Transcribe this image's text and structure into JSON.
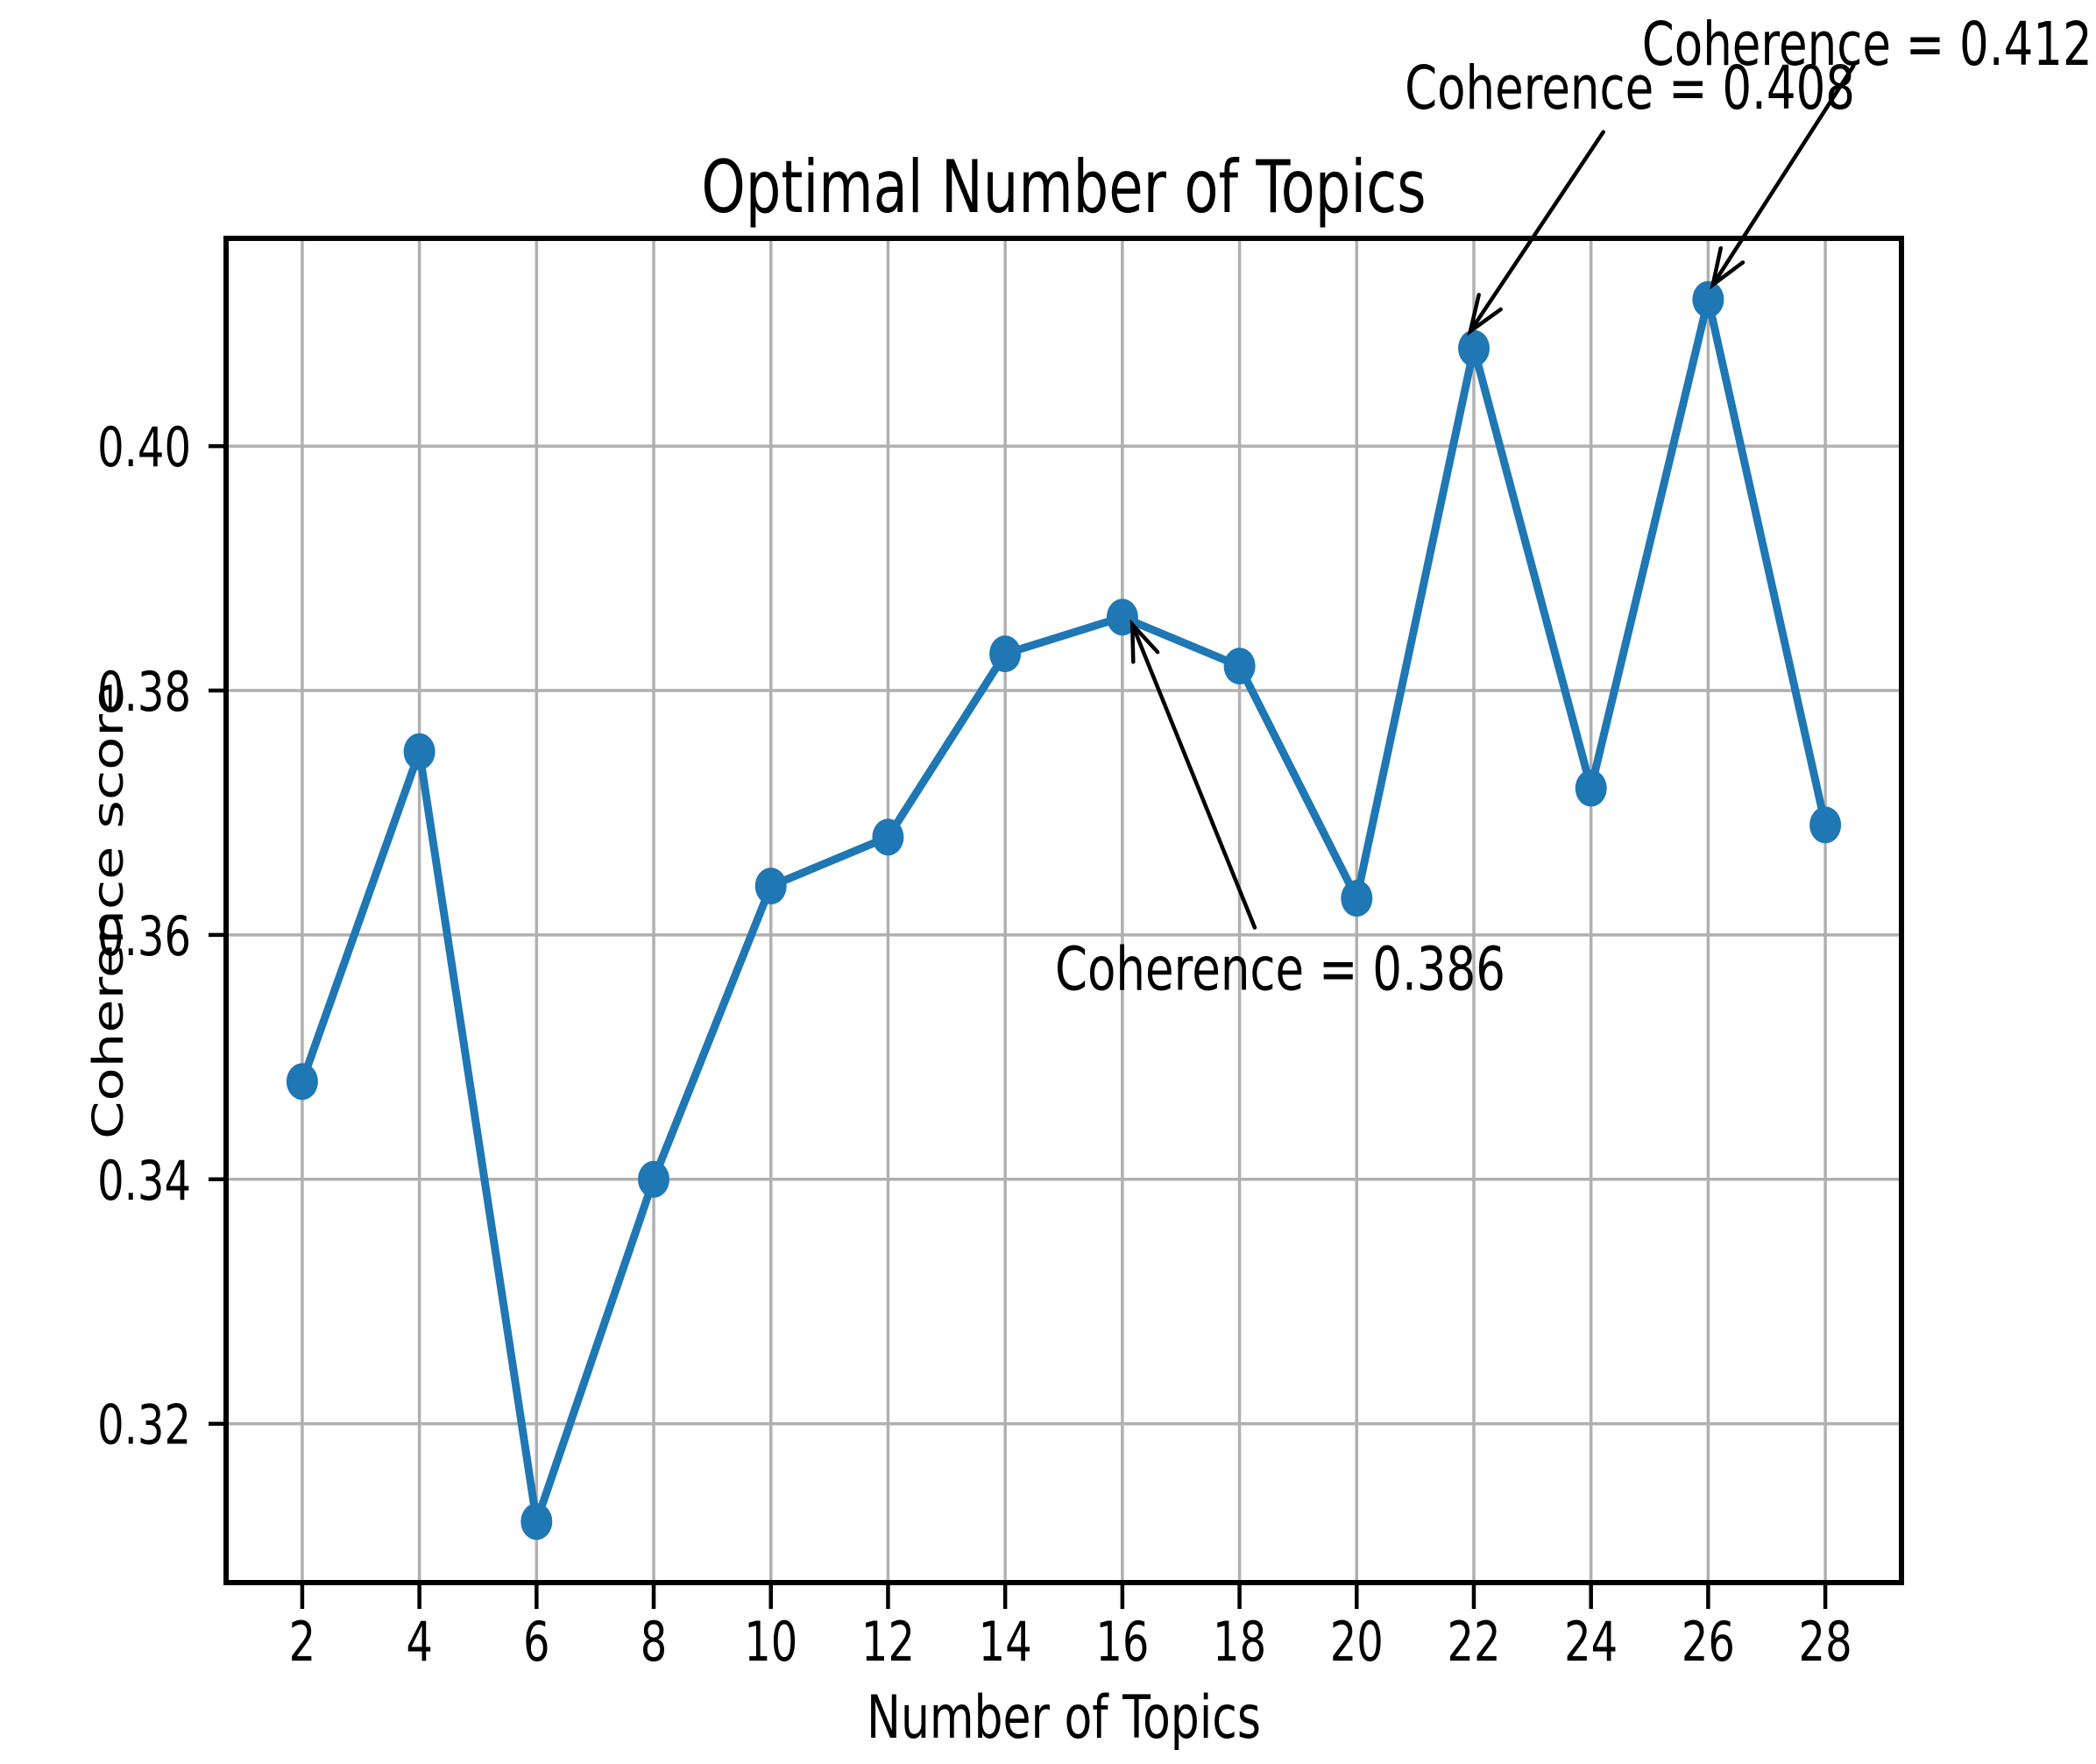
{
  "figure": {
    "background_color": "#ffffff",
    "text_color": "#000000",
    "grid_color": "#b0b0b0"
  },
  "chart_data": {
    "type": "line",
    "title": "Optimal Number of Topics",
    "xlabel": "Number of Topics",
    "ylabel": "Coherence score",
    "x": [
      2,
      4,
      6,
      8,
      10,
      12,
      14,
      16,
      18,
      20,
      22,
      24,
      26,
      28
    ],
    "series": [
      {
        "name": "Coherence score",
        "values": [
          0.348,
          0.375,
          0.312,
          0.34,
          0.364,
          0.368,
          0.383,
          0.386,
          0.382,
          0.363,
          0.408,
          0.372,
          0.412,
          0.369
        ]
      }
    ],
    "line_color": "#1f77b4",
    "marker": "o",
    "grid": true,
    "legend": "none",
    "xlim": [
      0.7,
      29.3
    ],
    "ylim": [
      0.307,
      0.417
    ],
    "xticks": [
      {
        "v": 2,
        "label": "2"
      },
      {
        "v": 4,
        "label": "4"
      },
      {
        "v": 6,
        "label": "6"
      },
      {
        "v": 8,
        "label": "8"
      },
      {
        "v": 10,
        "label": "10"
      },
      {
        "v": 12,
        "label": "12"
      },
      {
        "v": 14,
        "label": "14"
      },
      {
        "v": 16,
        "label": "16"
      },
      {
        "v": 18,
        "label": "18"
      },
      {
        "v": 20,
        "label": "20"
      },
      {
        "v": 22,
        "label": "22"
      },
      {
        "v": 24,
        "label": "24"
      },
      {
        "v": 26,
        "label": "26"
      },
      {
        "v": 28,
        "label": "28"
      }
    ],
    "yticks": [
      {
        "v": 0.32,
        "label": "0.32"
      },
      {
        "v": 0.34,
        "label": "0.34"
      },
      {
        "v": 0.36,
        "label": "0.36"
      },
      {
        "v": 0.38,
        "label": "0.38"
      },
      {
        "v": 0.4,
        "label": "0.40"
      }
    ],
    "annotations": [
      {
        "label": "Coherence = 0.386",
        "point": {
          "x": 16,
          "y": 0.386
        },
        "text": {
          "x": 14.85,
          "y": 0.3555
        },
        "arrow": {
          "tail": [
            18.26,
            0.3606
          ],
          "tip": [
            16.17,
            0.3854
          ]
        }
      },
      {
        "label": "Coherence = 0.408",
        "point": {
          "x": 22,
          "y": 0.408
        },
        "text": {
          "x": 20.82,
          "y": 0.4276
        },
        "arrow": {
          "tail": [
            24.21,
            0.4257
          ],
          "tip": [
            21.94,
            0.4094
          ]
        }
      },
      {
        "label": "Coherence = 0.412",
        "point": {
          "x": 26,
          "y": 0.412
        },
        "text": {
          "x": 24.87,
          "y": 0.4312
        },
        "arrow": {
          "tail": [
            28.48,
            0.4311
          ],
          "tip": [
            26.08,
            0.4132
          ]
        }
      }
    ]
  }
}
